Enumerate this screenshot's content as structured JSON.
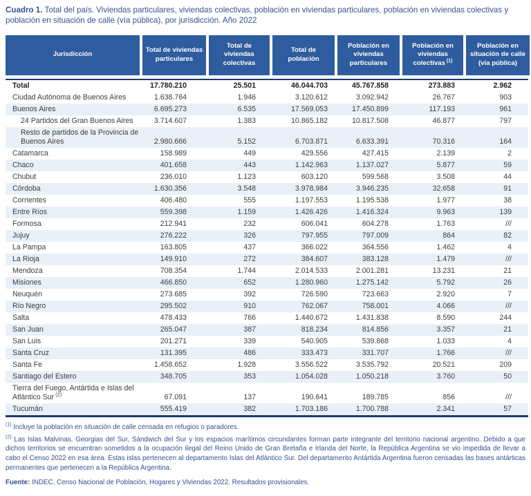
{
  "title": {
    "label": "Cuadro 1.",
    "text": " Total del país. Viviendas particulares, viviendas colectivas, población en viviendas particulares, población en viviendas colectivas y población en situación de calle (vía pública), por jurisdicción. Año 2022"
  },
  "table": {
    "columns": [
      {
        "label": "Jurisdicción",
        "sup": ""
      },
      {
        "label": "Total de viviendas particulares",
        "sup": ""
      },
      {
        "label": "Total de viviendas colectivas",
        "sup": ""
      },
      {
        "label": "Total de población",
        "sup": ""
      },
      {
        "label": "Población en viviendas particulares",
        "sup": ""
      },
      {
        "label": "Población en viviendas colectivas",
        "sup": "(1)"
      },
      {
        "label": "Población en situación de calle (vía pública)",
        "sup": ""
      }
    ],
    "rows": [
      {
        "name": "Total",
        "bold": true,
        "indent": false,
        "sup": "",
        "values": [
          "17.780.210",
          "25.501",
          "46.044.703",
          "45.767.858",
          "273.883",
          "2.962"
        ]
      },
      {
        "name": "Ciudad Autónoma de Buenos Aires",
        "bold": false,
        "indent": false,
        "sup": "",
        "values": [
          "1.638.764",
          "1.946",
          "3.120.612",
          "3.092.942",
          "26.767",
          "903"
        ]
      },
      {
        "name": "Buenos Aires",
        "bold": false,
        "indent": false,
        "sup": "",
        "values": [
          "6.695.273",
          "6.535",
          "17.569.053",
          "17.450.899",
          "117.193",
          "961"
        ]
      },
      {
        "name": "24 Partidos del Gran Buenos Aires",
        "bold": false,
        "indent": true,
        "sup": "",
        "values": [
          "3.714.607",
          "1.383",
          "10.865.182",
          "10.817.508",
          "46.877",
          "797"
        ]
      },
      {
        "name": "Resto de partidos de la Provincia de Buenos Aires",
        "bold": false,
        "indent": true,
        "sup": "",
        "values": [
          "2.980.666",
          "5.152",
          "6.703.871",
          "6.633.391",
          "70.316",
          "164"
        ]
      },
      {
        "name": "Catamarca",
        "bold": false,
        "indent": false,
        "sup": "",
        "values": [
          "158.989",
          "449",
          "429.556",
          "427.415",
          "2.139",
          "2"
        ]
      },
      {
        "name": "Chaco",
        "bold": false,
        "indent": false,
        "sup": "",
        "values": [
          "401.658",
          "443",
          "1.142.963",
          "1.137.027",
          "5.877",
          "59"
        ]
      },
      {
        "name": "Chubut",
        "bold": false,
        "indent": false,
        "sup": "",
        "values": [
          "236.010",
          "1.123",
          "603.120",
          "599.568",
          "3.508",
          "44"
        ]
      },
      {
        "name": "Córdoba",
        "bold": false,
        "indent": false,
        "sup": "",
        "values": [
          "1.630.356",
          "3.548",
          "3.978.984",
          "3.946.235",
          "32.658",
          "91"
        ]
      },
      {
        "name": "Corrientes",
        "bold": false,
        "indent": false,
        "sup": "",
        "values": [
          "406.480",
          "555",
          "1.197.553",
          "1.195.538",
          "1.977",
          "38"
        ]
      },
      {
        "name": "Entre Ríos",
        "bold": false,
        "indent": false,
        "sup": "",
        "values": [
          "559.398",
          "1.159",
          "1.426.426",
          "1.416.324",
          "9.963",
          "139"
        ]
      },
      {
        "name": "Formosa",
        "bold": false,
        "indent": false,
        "sup": "",
        "values": [
          "212.941",
          "232",
          "606.041",
          "604.278",
          "1.763",
          "///"
        ]
      },
      {
        "name": "Jujuy",
        "bold": false,
        "indent": false,
        "sup": "",
        "values": [
          "276.222",
          "326",
          "797.955",
          "797.009",
          "864",
          "82"
        ]
      },
      {
        "name": "La Pampa",
        "bold": false,
        "indent": false,
        "sup": "",
        "values": [
          "163.805",
          "437",
          "366.022",
          "364.556",
          "1.462",
          "4"
        ]
      },
      {
        "name": "La Rioja",
        "bold": false,
        "indent": false,
        "sup": "",
        "values": [
          "149.910",
          "272",
          "384.607",
          "383.128",
          "1.479",
          "///"
        ]
      },
      {
        "name": "Mendoza",
        "bold": false,
        "indent": false,
        "sup": "",
        "values": [
          "708.354",
          "1.744",
          "2.014.533",
          "2.001.281",
          "13.231",
          "21"
        ]
      },
      {
        "name": "Misiones",
        "bold": false,
        "indent": false,
        "sup": "",
        "values": [
          "466.850",
          "652",
          "1.280.960",
          "1.275.142",
          "5.792",
          "26"
        ]
      },
      {
        "name": "Neuquén",
        "bold": false,
        "indent": false,
        "sup": "",
        "values": [
          "273.685",
          "392",
          "726.590",
          "723.663",
          "2.920",
          "7"
        ]
      },
      {
        "name": "Río Negro",
        "bold": false,
        "indent": false,
        "sup": "",
        "values": [
          "295.502",
          "910",
          "762.067",
          "758.001",
          "4.066",
          "///"
        ]
      },
      {
        "name": "Salta",
        "bold": false,
        "indent": false,
        "sup": "",
        "values": [
          "478.433",
          "766",
          "1.440.672",
          "1.431.838",
          "8.590",
          "244"
        ]
      },
      {
        "name": "San Juan",
        "bold": false,
        "indent": false,
        "sup": "",
        "values": [
          "265.047",
          "387",
          "818.234",
          "814.856",
          "3.357",
          "21"
        ]
      },
      {
        "name": "San Luis",
        "bold": false,
        "indent": false,
        "sup": "",
        "values": [
          "201.271",
          "339",
          "540.905",
          "539.868",
          "1.033",
          "4"
        ]
      },
      {
        "name": "Santa Cruz",
        "bold": false,
        "indent": false,
        "sup": "",
        "values": [
          "131.395",
          "486",
          "333.473",
          "331.707",
          "1.766",
          "///"
        ]
      },
      {
        "name": "Santa Fe",
        "bold": false,
        "indent": false,
        "sup": "",
        "values": [
          "1.458.652",
          "1.928",
          "3.556.522",
          "3.535.792",
          "20.521",
          "209"
        ]
      },
      {
        "name": "Santiago del Estero",
        "bold": false,
        "indent": false,
        "sup": "",
        "values": [
          "348.705",
          "353",
          "1.054.028",
          "1.050.218",
          "3.760",
          "50"
        ]
      },
      {
        "name": "Tierra del Fuego, Antártida e Islas del Atlántico Sur",
        "bold": false,
        "indent": false,
        "sup": "(2)",
        "values": [
          "67.091",
          "137",
          "190.641",
          "189.785",
          "856",
          "///"
        ]
      },
      {
        "name": "Tucumán",
        "bold": false,
        "indent": false,
        "sup": "",
        "values": [
          "555.419",
          "382",
          "1.703.186",
          "1.700.788",
          "2.341",
          "57"
        ]
      }
    ]
  },
  "footnotes": [
    {
      "marker": "(1)",
      "text": " Incluye la población en situación de calle censada en refugios o paradores."
    },
    {
      "marker": "(2)",
      "text": " Las Islas Malvinas, Georgias del Sur, Sándwich del Sur y los espacios marítimos circundantes forman parte integrante del territorio nacional argentino. Debido a que dichos territorios se encuentran sometidos a la ocupación ilegal del Reino Unido de Gran Bretaña e Irlanda del Norte, la República Argentina se vio impedida de llevar a cabo el Censo 2022 en esa área. Estas islas pertenecen al departamento Islas del Atlántico Sur. Del departamento Antártida Argentina fueron censadas las bases antárticas permanentes que pertenecen a la República Argentina."
    }
  ],
  "source": {
    "label": "Fuente:",
    "text": " INDEC, Censo Nacional de Población, Hogares y Viviendas 2022. Resultados provisionales."
  },
  "colors": {
    "header_bg": "#2e5c9e",
    "rule": "#1c3a6e",
    "stripe": "#eaf0f8",
    "title_text": "#33518e",
    "body_text": "#3c3c3c"
  }
}
